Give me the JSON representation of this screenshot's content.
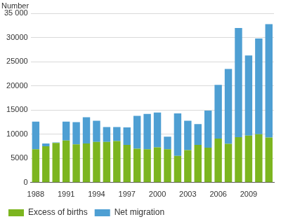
{
  "chart_data": {
    "type": "bar",
    "ylabel": "Number",
    "categories": [
      "1988",
      null,
      null,
      "1991",
      null,
      null,
      "1994",
      null,
      null,
      "1997",
      null,
      null,
      "2000",
      null,
      null,
      "2003",
      null,
      null,
      "2006",
      null,
      null,
      "2009",
      null,
      null
    ],
    "series": [
      {
        "name": "Excess of births",
        "color": "#7cb51f",
        "values": [
          6900,
          7500,
          8200,
          8700,
          7900,
          8100,
          8400,
          8400,
          8600,
          7800,
          7000,
          6900,
          7300,
          6900,
          5500,
          6700,
          7800,
          7200,
          9100,
          8000,
          9400,
          9700,
          10000,
          9300
        ]
      },
      {
        "name": "Net migration",
        "color": "#4e9fd3",
        "values": [
          5700,
          600,
          100,
          3900,
          4600,
          5400,
          4400,
          3100,
          2900,
          3600,
          6800,
          7300,
          7200,
          2600,
          8800,
          6100,
          4300,
          7700,
          11100,
          15500,
          22600,
          16600,
          19800,
          23500
        ]
      }
    ],
    "stacked": true,
    "ylim": [
      0,
      35000
    ],
    "yticks": [
      0,
      5000,
      10000,
      15000,
      20000,
      25000,
      30000,
      {
        "value": 35000,
        "label": "35 000"
      }
    ],
    "grid": true,
    "legend": "bottom"
  }
}
